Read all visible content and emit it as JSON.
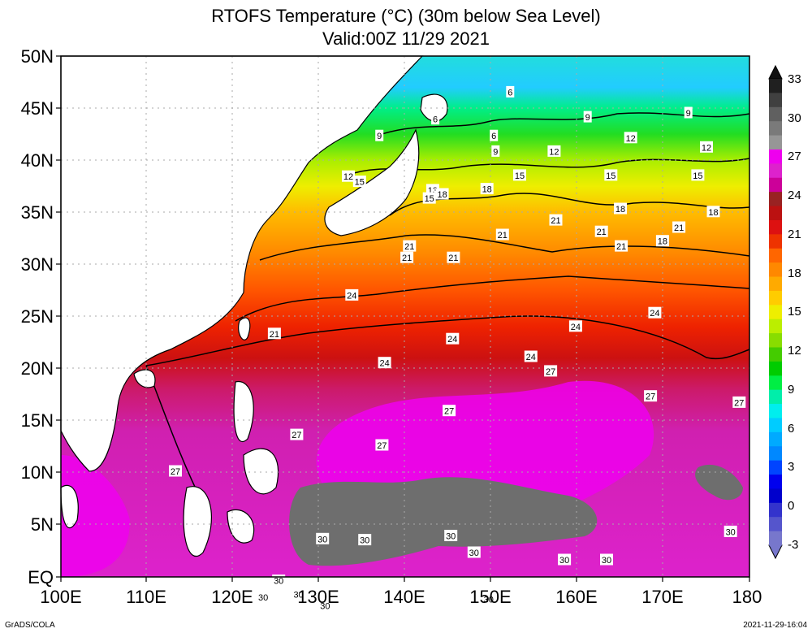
{
  "title": {
    "line1": "RTOFS Temperature (°C) (30m below Sea Level)",
    "line2": "Valid:00Z 11/29 2021"
  },
  "axes": {
    "lat_labels": [
      "50N",
      "45N",
      "40N",
      "35N",
      "30N",
      "25N",
      "20N",
      "15N",
      "10N",
      "5N",
      "EQ"
    ],
    "lon_labels": [
      "100E",
      "110E",
      "120E",
      "130E",
      "140E",
      "150E",
      "160E",
      "170E",
      "180"
    ]
  },
  "colorbar": {
    "labels": [
      "33",
      "30",
      "27",
      "24",
      "21",
      "18",
      "15",
      "12",
      "9",
      "6",
      "3",
      "0",
      "-3"
    ],
    "colors": [
      "#202020",
      "#404040",
      "#606060",
      "#7a7a7a",
      "#969696",
      "#ee00ee",
      "#dd22cc",
      "#cc0099",
      "#992222",
      "#bb1111",
      "#dd1111",
      "#ee3300",
      "#ff6600",
      "#ff8800",
      "#ffaa00",
      "#ffcc00",
      "#eeee00",
      "#bbee00",
      "#88dd00",
      "#44cc00",
      "#00cc00",
      "#00ee44",
      "#00eeaa",
      "#00eeee",
      "#00ccff",
      "#00aaff",
      "#0088ff",
      "#0044ff",
      "#0000ee",
      "#0000cc",
      "#3333cc",
      "#5555cc",
      "#7777cc"
    ]
  },
  "contour_labels": [
    {
      "text": "6",
      "lon": 152.2,
      "lat": 46.5
    },
    {
      "text": "6",
      "lon": 143.5,
      "lat": 43.9
    },
    {
      "text": "6",
      "lon": 150.3,
      "lat": 42.3
    },
    {
      "text": "9",
      "lon": 161.2,
      "lat": 44.1
    },
    {
      "text": "9",
      "lon": 172.9,
      "lat": 44.5
    },
    {
      "text": "9",
      "lon": 150.5,
      "lat": 40.8
    },
    {
      "text": "9",
      "lon": 137.0,
      "lat": 42.3
    },
    {
      "text": "12",
      "lon": 157.3,
      "lat": 40.8
    },
    {
      "text": "12",
      "lon": 166.2,
      "lat": 42.1
    },
    {
      "text": "12",
      "lon": 175.0,
      "lat": 41.2
    },
    {
      "text": "12",
      "lon": 133.4,
      "lat": 38.4
    },
    {
      "text": "15",
      "lon": 134.7,
      "lat": 37.9
    },
    {
      "text": "15",
      "lon": 153.3,
      "lat": 38.5
    },
    {
      "text": "15",
      "lon": 163.9,
      "lat": 38.5
    },
    {
      "text": "15",
      "lon": 174.0,
      "lat": 38.5
    },
    {
      "text": "13",
      "lon": 143.2,
      "lat": 37.1
    },
    {
      "text": "15",
      "lon": 142.8,
      "lat": 36.3
    },
    {
      "text": "18",
      "lon": 144.3,
      "lat": 36.7
    },
    {
      "text": "18",
      "lon": 149.5,
      "lat": 37.2
    },
    {
      "text": "18",
      "lon": 165.0,
      "lat": 35.3
    },
    {
      "text": "18",
      "lon": 175.8,
      "lat": 35.0
    },
    {
      "text": "18",
      "lon": 169.9,
      "lat": 32.2
    },
    {
      "text": "21",
      "lon": 157.5,
      "lat": 34.2
    },
    {
      "text": "21",
      "lon": 162.8,
      "lat": 33.1
    },
    {
      "text": "21",
      "lon": 171.8,
      "lat": 33.5
    },
    {
      "text": "21",
      "lon": 151.3,
      "lat": 32.8
    },
    {
      "text": "21",
      "lon": 140.5,
      "lat": 31.7
    },
    {
      "text": "21",
      "lon": 140.2,
      "lat": 30.6
    },
    {
      "text": "21",
      "lon": 145.6,
      "lat": 30.6
    },
    {
      "text": "21",
      "lon": 165.1,
      "lat": 31.7
    },
    {
      "text": "21",
      "lon": 124.8,
      "lat": 23.3
    },
    {
      "text": "24",
      "lon": 133.8,
      "lat": 27.0
    },
    {
      "text": "24",
      "lon": 169.0,
      "lat": 25.3
    },
    {
      "text": "24",
      "lon": 159.8,
      "lat": 24.0
    },
    {
      "text": "24",
      "lon": 145.5,
      "lat": 22.8
    },
    {
      "text": "24",
      "lon": 154.6,
      "lat": 21.1
    },
    {
      "text": "24",
      "lon": 137.6,
      "lat": 20.5
    },
    {
      "text": "27",
      "lon": 156.9,
      "lat": 19.7
    },
    {
      "text": "27",
      "lon": 168.5,
      "lat": 17.3
    },
    {
      "text": "27",
      "lon": 178.8,
      "lat": 16.7
    },
    {
      "text": "27",
      "lon": 145.1,
      "lat": 15.9
    },
    {
      "text": "27",
      "lon": 127.4,
      "lat": 13.6
    },
    {
      "text": "27",
      "lon": 137.3,
      "lat": 12.6
    },
    {
      "text": "27",
      "lon": 113.3,
      "lat": 10.1
    },
    {
      "text": "30",
      "lon": 130.4,
      "lat": 3.6
    },
    {
      "text": "30",
      "lon": 135.3,
      "lat": 3.5
    },
    {
      "text": "30",
      "lon": 145.3,
      "lat": 3.9
    },
    {
      "text": "30",
      "lon": 148.0,
      "lat": 2.3
    },
    {
      "text": "30",
      "lon": 158.5,
      "lat": 1.6
    },
    {
      "text": "30",
      "lon": 163.4,
      "lat": 1.6
    },
    {
      "text": "30",
      "lon": 177.8,
      "lat": 4.3
    },
    {
      "text": "30",
      "lon": 125.3,
      "lat": -0.4
    },
    {
      "text": "30",
      "lon": 123.5,
      "lat": -2.0
    },
    {
      "text": "30",
      "lon": 127.6,
      "lat": -1.7
    },
    {
      "text": "30",
      "lon": 130.7,
      "lat": -2.8
    },
    {
      "text": "30",
      "lon": 149.7,
      "lat": -2.2
    }
  ],
  "footer": {
    "left": "GrADS/COLA",
    "right": "2021-11-29-16:04"
  }
}
